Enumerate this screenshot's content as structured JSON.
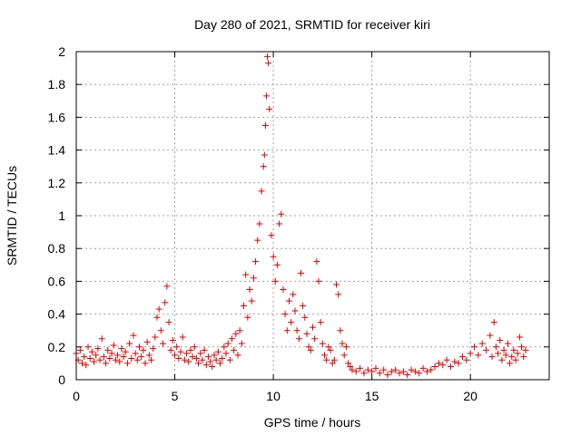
{
  "colors": {
    "series": "#e00000",
    "grid": "#a0a0a0",
    "axis": "#000000"
  },
  "chart_data": {
    "type": "scatter",
    "title": "Day 280 of 2021, SRMTID for receiver kiri",
    "xlabel": "GPS time / hours",
    "ylabel": "SRMTID / TECUs",
    "xlim": [
      0,
      24
    ],
    "ylim": [
      0,
      2
    ],
    "xticks": [
      0,
      5,
      10,
      15,
      20
    ],
    "xtick_labels": [
      "0",
      "5",
      "10",
      "15",
      "20"
    ],
    "yticks": [
      0,
      0.2,
      0.4,
      0.6,
      0.8,
      1,
      1.2,
      1.4,
      1.6,
      1.8,
      2
    ],
    "ytick_labels": [
      "0",
      "0.2",
      "0.4",
      "0.6",
      "0.8",
      "1",
      "1.2",
      "1.4",
      "1.6",
      "1.8",
      "2"
    ],
    "grid": true,
    "marker": "plus",
    "series": [
      {
        "name": "SRMTID",
        "x": [
          0.0,
          0.1,
          0.2,
          0.3,
          0.4,
          0.5,
          0.6,
          0.7,
          0.8,
          0.9,
          1.0,
          1.1,
          1.2,
          1.3,
          1.4,
          1.5,
          1.6,
          1.7,
          1.8,
          1.9,
          2.0,
          2.1,
          2.2,
          2.3,
          2.4,
          2.5,
          2.6,
          2.7,
          2.8,
          2.9,
          3.0,
          3.1,
          3.2,
          3.3,
          3.4,
          3.5,
          3.6,
          3.7,
          3.8,
          3.9,
          4.0,
          4.1,
          4.2,
          4.3,
          4.4,
          4.5,
          4.6,
          4.7,
          4.8,
          4.9,
          5.0,
          5.1,
          5.2,
          5.3,
          5.4,
          5.5,
          5.6,
          5.7,
          5.8,
          5.9,
          6.0,
          6.1,
          6.2,
          6.3,
          6.4,
          6.5,
          6.6,
          6.7,
          6.8,
          6.9,
          7.0,
          7.1,
          7.2,
          7.3,
          7.4,
          7.5,
          7.6,
          7.7,
          7.8,
          7.9,
          8.0,
          8.1,
          8.2,
          8.3,
          8.4,
          8.5,
          8.6,
          8.7,
          8.8,
          8.9,
          9.0,
          9.1,
          9.2,
          9.3,
          9.4,
          9.5,
          9.55,
          9.6,
          9.65,
          9.7,
          9.75,
          9.8,
          9.9,
          10.0,
          10.1,
          10.2,
          10.3,
          10.4,
          10.5,
          10.6,
          10.7,
          10.8,
          10.9,
          11.0,
          11.1,
          11.2,
          11.3,
          11.4,
          11.5,
          11.6,
          11.7,
          11.8,
          11.9,
          12.0,
          12.1,
          12.2,
          12.3,
          12.4,
          12.5,
          12.6,
          12.7,
          12.8,
          12.9,
          13.0,
          13.1,
          13.2,
          13.3,
          13.4,
          13.5,
          13.6,
          13.7,
          13.8,
          13.9,
          14.0,
          14.2,
          14.4,
          14.6,
          14.8,
          15.0,
          15.2,
          15.4,
          15.6,
          15.8,
          16.0,
          16.2,
          16.4,
          16.6,
          16.8,
          17.0,
          17.2,
          17.4,
          17.6,
          17.8,
          18.0,
          18.2,
          18.4,
          18.6,
          18.8,
          19.0,
          19.2,
          19.4,
          19.6,
          19.8,
          20.0,
          20.2,
          20.4,
          20.6,
          20.8,
          21.0,
          21.1,
          21.2,
          21.3,
          21.4,
          21.5,
          21.6,
          21.7,
          21.8,
          21.9,
          22.0,
          22.1,
          22.2,
          22.3,
          22.4,
          22.5,
          22.6,
          22.7,
          22.8
        ],
        "y": [
          0.16,
          0.12,
          0.18,
          0.1,
          0.14,
          0.09,
          0.2,
          0.13,
          0.17,
          0.11,
          0.15,
          0.19,
          0.12,
          0.25,
          0.14,
          0.1,
          0.18,
          0.13,
          0.16,
          0.21,
          0.12,
          0.15,
          0.11,
          0.19,
          0.14,
          0.17,
          0.1,
          0.22,
          0.13,
          0.27,
          0.16,
          0.12,
          0.2,
          0.14,
          0.18,
          0.1,
          0.23,
          0.15,
          0.12,
          0.19,
          0.26,
          0.38,
          0.43,
          0.3,
          0.22,
          0.47,
          0.57,
          0.35,
          0.18,
          0.24,
          0.15,
          0.2,
          0.13,
          0.17,
          0.26,
          0.12,
          0.16,
          0.11,
          0.18,
          0.14,
          0.2,
          0.13,
          0.1,
          0.16,
          0.12,
          0.18,
          0.09,
          0.14,
          0.11,
          0.08,
          0.15,
          0.12,
          0.17,
          0.1,
          0.13,
          0.2,
          0.16,
          0.22,
          0.12,
          0.25,
          0.18,
          0.28,
          0.15,
          0.3,
          0.22,
          0.45,
          0.64,
          0.38,
          0.55,
          0.48,
          0.62,
          0.72,
          0.85,
          0.95,
          1.15,
          1.3,
          1.37,
          1.55,
          1.73,
          1.97,
          1.93,
          1.65,
          0.88,
          0.75,
          0.6,
          0.7,
          0.95,
          1.01,
          0.55,
          0.4,
          0.3,
          0.48,
          0.35,
          0.52,
          0.42,
          0.3,
          0.25,
          0.65,
          0.45,
          0.38,
          0.28,
          0.2,
          0.18,
          0.32,
          0.25,
          0.72,
          0.6,
          0.35,
          0.22,
          0.15,
          0.12,
          0.2,
          0.18,
          0.1,
          0.12,
          0.58,
          0.52,
          0.3,
          0.22,
          0.15,
          0.2,
          0.1,
          0.08,
          0.06,
          0.05,
          0.07,
          0.04,
          0.06,
          0.05,
          0.07,
          0.04,
          0.06,
          0.03,
          0.05,
          0.06,
          0.04,
          0.05,
          0.03,
          0.06,
          0.05,
          0.04,
          0.07,
          0.05,
          0.06,
          0.08,
          0.1,
          0.09,
          0.12,
          0.08,
          0.11,
          0.1,
          0.14,
          0.12,
          0.16,
          0.2,
          0.15,
          0.22,
          0.18,
          0.27,
          0.14,
          0.35,
          0.2,
          0.16,
          0.24,
          0.12,
          0.18,
          0.15,
          0.22,
          0.1,
          0.14,
          0.18,
          0.12,
          0.16,
          0.26,
          0.2,
          0.14,
          0.18
        ]
      }
    ]
  }
}
